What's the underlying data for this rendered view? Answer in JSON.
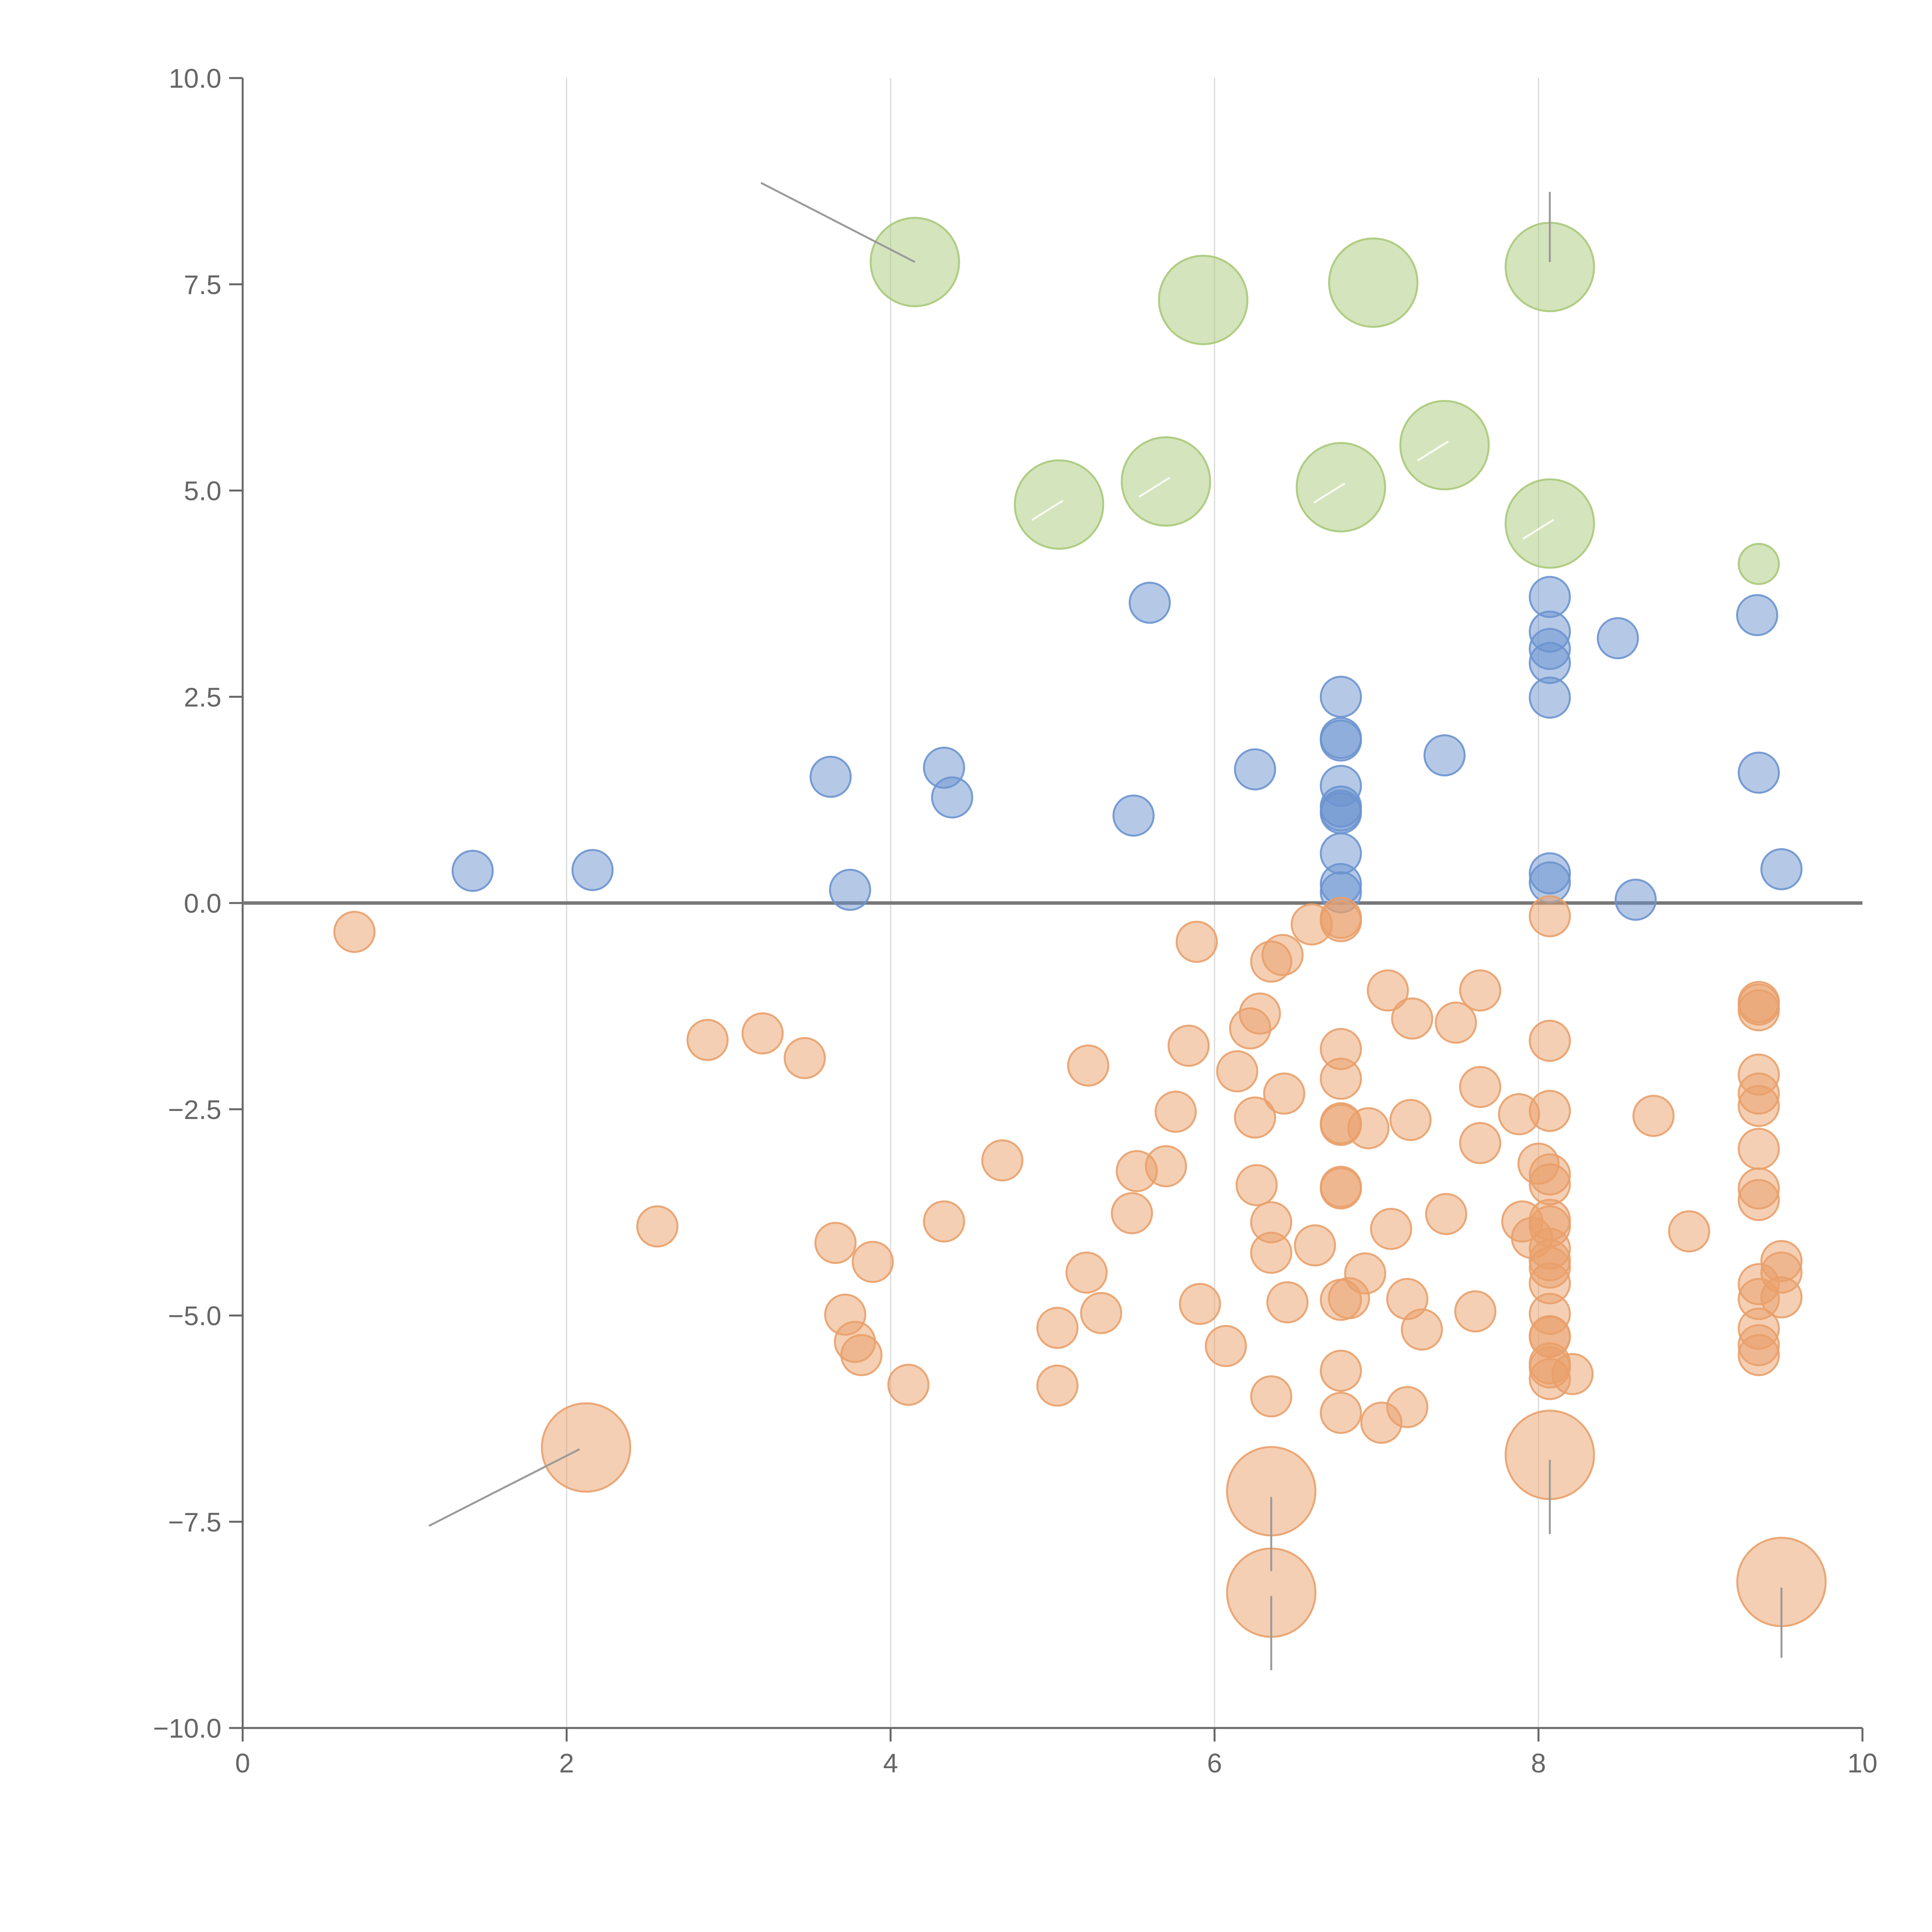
{
  "chart_data": {
    "type": "scatter",
    "title": "",
    "xlabel": "",
    "ylabel": "",
    "xlim": [
      0,
      10
    ],
    "ylim": [
      -10,
      10
    ],
    "grid": "vertical",
    "x_ticks": [
      0,
      2,
      4,
      6,
      8,
      10
    ],
    "x_tick_labels": [
      "0",
      "2",
      "4",
      "6",
      "8",
      "10"
    ],
    "y_ticks": [
      10,
      7.5,
      5,
      2.5,
      0,
      -2.5,
      -5,
      -7.5,
      -10
    ],
    "y_tick_labels": [
      "10.0",
      "7.5",
      "5.0",
      "2.5",
      "0.0",
      "−2.5",
      "−5.0",
      "−7.5",
      "−10.0"
    ],
    "reference_line_y": 0,
    "series": [
      {
        "name": "green",
        "color": "#a9c97a",
        "points": [
          {
            "x": 4.15,
            "y": 7.77,
            "r": 2.2
          },
          {
            "x": 5.93,
            "y": 7.31,
            "r": 2.2
          },
          {
            "x": 6.98,
            "y": 7.52,
            "r": 2.2
          },
          {
            "x": 8.07,
            "y": 7.71,
            "r": 2.2
          },
          {
            "x": 5.04,
            "y": 4.83,
            "r": 2.2
          },
          {
            "x": 5.7,
            "y": 5.11,
            "r": 2.2
          },
          {
            "x": 6.78,
            "y": 5.04,
            "r": 2.2
          },
          {
            "x": 7.42,
            "y": 5.55,
            "r": 2.2
          },
          {
            "x": 8.07,
            "y": 4.6,
            "r": 2.2
          },
          {
            "x": 9.36,
            "y": 4.11,
            "r": 1
          }
        ]
      },
      {
        "name": "blue",
        "color": "#6b93cf",
        "points": [
          {
            "x": 1.42,
            "y": 0.39,
            "r": 1
          },
          {
            "x": 2.16,
            "y": 0.4,
            "r": 1
          },
          {
            "x": 3.63,
            "y": 1.53,
            "r": 1
          },
          {
            "x": 3.75,
            "y": 0.16,
            "r": 1
          },
          {
            "x": 4.33,
            "y": 1.64,
            "r": 1
          },
          {
            "x": 4.38,
            "y": 1.28,
            "r": 1
          },
          {
            "x": 5.5,
            "y": 1.06,
            "r": 1
          },
          {
            "x": 5.6,
            "y": 3.64,
            "r": 1
          },
          {
            "x": 6.25,
            "y": 1.62,
            "r": 1
          },
          {
            "x": 6.78,
            "y": 2.5,
            "r": 1
          },
          {
            "x": 6.78,
            "y": 2.0,
            "r": 1
          },
          {
            "x": 6.78,
            "y": 1.97,
            "r": 1
          },
          {
            "x": 6.78,
            "y": 1.42,
            "r": 1
          },
          {
            "x": 6.78,
            "y": 1.17,
            "r": 1
          },
          {
            "x": 6.78,
            "y": 1.12,
            "r": 1
          },
          {
            "x": 6.78,
            "y": 1.09,
            "r": 1
          },
          {
            "x": 6.78,
            "y": 0.6,
            "r": 1
          },
          {
            "x": 6.78,
            "y": 0.23,
            "r": 1
          },
          {
            "x": 6.78,
            "y": 0.13,
            "r": 1
          },
          {
            "x": 7.42,
            "y": 1.79,
            "r": 1
          },
          {
            "x": 8.07,
            "y": 3.71,
            "r": 1
          },
          {
            "x": 8.07,
            "y": 3.29,
            "r": 1
          },
          {
            "x": 8.07,
            "y": 3.08,
            "r": 1
          },
          {
            "x": 8.07,
            "y": 2.91,
            "r": 1
          },
          {
            "x": 8.07,
            "y": 2.49,
            "r": 1
          },
          {
            "x": 8.07,
            "y": 0.36,
            "r": 1
          },
          {
            "x": 8.07,
            "y": 0.25,
            "r": 1
          },
          {
            "x": 8.49,
            "y": 3.21,
            "r": 1
          },
          {
            "x": 8.6,
            "y": 0.04,
            "r": 1
          },
          {
            "x": 9.35,
            "y": 3.49,
            "r": 1
          },
          {
            "x": 9.36,
            "y": 1.58,
            "r": 1
          },
          {
            "x": 9.5,
            "y": 0.41,
            "r": 1
          }
        ]
      },
      {
        "name": "orange",
        "color": "#e9a06a",
        "points": [
          {
            "x": 0.69,
            "y": -0.35,
            "r": 1
          },
          {
            "x": 2.12,
            "y": -6.6,
            "r": 2.2
          },
          {
            "x": 2.56,
            "y": -3.92,
            "r": 1
          },
          {
            "x": 2.87,
            "y": -1.66,
            "r": 1
          },
          {
            "x": 3.21,
            "y": -1.58,
            "r": 1
          },
          {
            "x": 3.47,
            "y": -1.88,
            "r": 1
          },
          {
            "x": 3.66,
            "y": -4.12,
            "r": 1
          },
          {
            "x": 3.72,
            "y": -4.99,
            "r": 1
          },
          {
            "x": 3.78,
            "y": -5.32,
            "r": 1
          },
          {
            "x": 3.82,
            "y": -5.48,
            "r": 1
          },
          {
            "x": 3.89,
            "y": -4.35,
            "r": 1
          },
          {
            "x": 4.11,
            "y": -5.84,
            "r": 1
          },
          {
            "x": 4.33,
            "y": -3.86,
            "r": 1
          },
          {
            "x": 4.69,
            "y": -3.12,
            "r": 1
          },
          {
            "x": 5.03,
            "y": -5.15,
            "r": 1
          },
          {
            "x": 5.03,
            "y": -5.85,
            "r": 1
          },
          {
            "x": 5.21,
            "y": -4.48,
            "r": 1
          },
          {
            "x": 5.22,
            "y": -1.97,
            "r": 1
          },
          {
            "x": 5.3,
            "y": -4.97,
            "r": 1
          },
          {
            "x": 5.49,
            "y": -3.76,
            "r": 1
          },
          {
            "x": 5.52,
            "y": -3.25,
            "r": 1
          },
          {
            "x": 5.7,
            "y": -3.19,
            "r": 1
          },
          {
            "x": 5.76,
            "y": -2.53,
            "r": 1
          },
          {
            "x": 5.84,
            "y": -1.73,
            "r": 1
          },
          {
            "x": 5.89,
            "y": -0.47,
            "r": 1
          },
          {
            "x": 5.91,
            "y": -4.86,
            "r": 1
          },
          {
            "x": 6.07,
            "y": -5.37,
            "r": 1
          },
          {
            "x": 6.14,
            "y": -2.04,
            "r": 1
          },
          {
            "x": 6.22,
            "y": -1.52,
            "r": 1
          },
          {
            "x": 6.25,
            "y": -2.6,
            "r": 1
          },
          {
            "x": 6.26,
            "y": -3.42,
            "r": 1
          },
          {
            "x": 6.28,
            "y": -1.34,
            "r": 1
          },
          {
            "x": 6.35,
            "y": -3.87,
            "r": 1
          },
          {
            "x": 6.35,
            "y": -4.24,
            "r": 1
          },
          {
            "x": 6.35,
            "y": -5.98,
            "r": 1
          },
          {
            "x": 6.35,
            "y": -0.71,
            "r": 1
          },
          {
            "x": 6.35,
            "y": -7.13,
            "r": 2.2
          },
          {
            "x": 6.35,
            "y": -8.36,
            "r": 2.2
          },
          {
            "x": 6.42,
            "y": -0.63,
            "r": 1
          },
          {
            "x": 6.43,
            "y": -2.31,
            "r": 1
          },
          {
            "x": 6.45,
            "y": -4.84,
            "r": 1
          },
          {
            "x": 6.62,
            "y": -4.15,
            "r": 1
          },
          {
            "x": 6.6,
            "y": -0.26,
            "r": 1
          },
          {
            "x": 6.78,
            "y": -0.18,
            "r": 1
          },
          {
            "x": 6.78,
            "y": -0.22,
            "r": 1
          },
          {
            "x": 6.78,
            "y": -1.77,
            "r": 1
          },
          {
            "x": 6.78,
            "y": -2.13,
            "r": 1
          },
          {
            "x": 6.78,
            "y": -2.67,
            "r": 1
          },
          {
            "x": 6.78,
            "y": -2.69,
            "r": 1
          },
          {
            "x": 6.78,
            "y": -3.44,
            "r": 1
          },
          {
            "x": 6.78,
            "y": -3.46,
            "r": 1
          },
          {
            "x": 6.78,
            "y": -4.81,
            "r": 1
          },
          {
            "x": 6.78,
            "y": -5.67,
            "r": 1
          },
          {
            "x": 6.78,
            "y": -6.18,
            "r": 1
          },
          {
            "x": 6.83,
            "y": -4.79,
            "r": 1
          },
          {
            "x": 6.95,
            "y": -2.73,
            "r": 1
          },
          {
            "x": 6.93,
            "y": -4.49,
            "r": 1
          },
          {
            "x": 7.03,
            "y": -6.3,
            "r": 1
          },
          {
            "x": 7.07,
            "y": -1.06,
            "r": 1
          },
          {
            "x": 7.09,
            "y": -3.95,
            "r": 1
          },
          {
            "x": 7.19,
            "y": -4.8,
            "r": 1
          },
          {
            "x": 7.19,
            "y": -6.11,
            "r": 1
          },
          {
            "x": 7.21,
            "y": -2.63,
            "r": 1
          },
          {
            "x": 7.22,
            "y": -1.4,
            "r": 1
          },
          {
            "x": 7.28,
            "y": -5.17,
            "r": 1
          },
          {
            "x": 7.43,
            "y": -3.77,
            "r": 1
          },
          {
            "x": 7.49,
            "y": -1.45,
            "r": 1
          },
          {
            "x": 7.61,
            "y": -4.95,
            "r": 1
          },
          {
            "x": 7.64,
            "y": -1.06,
            "r": 1
          },
          {
            "x": 7.64,
            "y": -2.23,
            "r": 1
          },
          {
            "x": 7.64,
            "y": -2.91,
            "r": 1
          },
          {
            "x": 7.88,
            "y": -2.56,
            "r": 1
          },
          {
            "x": 7.9,
            "y": -3.86,
            "r": 1
          },
          {
            "x": 7.96,
            "y": -4.06,
            "r": 1
          },
          {
            "x": 8.0,
            "y": -3.16,
            "r": 1
          },
          {
            "x": 8.07,
            "y": -0.16,
            "r": 1
          },
          {
            "x": 8.07,
            "y": -1.67,
            "r": 1
          },
          {
            "x": 8.07,
            "y": -2.52,
            "r": 1
          },
          {
            "x": 8.07,
            "y": -3.29,
            "r": 1
          },
          {
            "x": 8.07,
            "y": -3.41,
            "r": 1
          },
          {
            "x": 8.07,
            "y": -3.84,
            "r": 1
          },
          {
            "x": 8.07,
            "y": -3.92,
            "r": 1
          },
          {
            "x": 8.07,
            "y": -4.19,
            "r": 1
          },
          {
            "x": 8.07,
            "y": -4.33,
            "r": 1
          },
          {
            "x": 8.07,
            "y": -4.42,
            "r": 1
          },
          {
            "x": 8.07,
            "y": -4.61,
            "r": 1
          },
          {
            "x": 8.07,
            "y": -4.98,
            "r": 1
          },
          {
            "x": 8.07,
            "y": -5.25,
            "r": 1
          },
          {
            "x": 8.07,
            "y": -5.26,
            "r": 1
          },
          {
            "x": 8.07,
            "y": -5.58,
            "r": 1
          },
          {
            "x": 8.07,
            "y": -5.63,
            "r": 1
          },
          {
            "x": 8.07,
            "y": -5.77,
            "r": 1
          },
          {
            "x": 8.07,
            "y": -6.69,
            "r": 2.2
          },
          {
            "x": 8.21,
            "y": -5.71,
            "r": 1
          },
          {
            "x": 8.71,
            "y": -2.58,
            "r": 1
          },
          {
            "x": 8.93,
            "y": -3.98,
            "r": 1
          },
          {
            "x": 9.36,
            "y": -1.2,
            "r": 1
          },
          {
            "x": 9.36,
            "y": -1.23,
            "r": 1
          },
          {
            "x": 9.36,
            "y": -1.3,
            "r": 1
          },
          {
            "x": 9.36,
            "y": -2.08,
            "r": 1
          },
          {
            "x": 9.36,
            "y": -2.31,
            "r": 1
          },
          {
            "x": 9.36,
            "y": -2.46,
            "r": 1
          },
          {
            "x": 9.36,
            "y": -2.98,
            "r": 1
          },
          {
            "x": 9.36,
            "y": -3.46,
            "r": 1
          },
          {
            "x": 9.36,
            "y": -3.6,
            "r": 1
          },
          {
            "x": 9.36,
            "y": -4.62,
            "r": 1
          },
          {
            "x": 9.36,
            "y": -4.8,
            "r": 1
          },
          {
            "x": 9.36,
            "y": -5.16,
            "r": 1
          },
          {
            "x": 9.36,
            "y": -5.36,
            "r": 1
          },
          {
            "x": 9.36,
            "y": -5.48,
            "r": 1
          },
          {
            "x": 9.5,
            "y": -4.34,
            "r": 1
          },
          {
            "x": 9.5,
            "y": -4.48,
            "r": 1
          },
          {
            "x": 9.5,
            "y": -4.78,
            "r": 1
          },
          {
            "x": 9.5,
            "y": -8.23,
            "r": 2.2
          }
        ]
      }
    ],
    "annotation_leaders": [
      {
        "x1": 3.2,
        "y1": 8.73,
        "x2": 4.15,
        "y2": 7.77
      },
      {
        "x1": 8.07,
        "y1": 8.62,
        "x2": 8.07,
        "y2": 7.77
      },
      {
        "x1": 1.15,
        "y1": -7.55,
        "x2": 2.08,
        "y2": -6.62
      },
      {
        "x1": 6.35,
        "y1": -7.2,
        "x2": 6.35,
        "y2": -8.1
      },
      {
        "x1": 6.35,
        "y1": -8.4,
        "x2": 6.35,
        "y2": -9.3
      },
      {
        "x1": 8.07,
        "y1": -6.75,
        "x2": 8.07,
        "y2": -7.65
      },
      {
        "x1": 9.5,
        "y1": -8.3,
        "x2": 9.5,
        "y2": -9.15
      }
    ]
  }
}
